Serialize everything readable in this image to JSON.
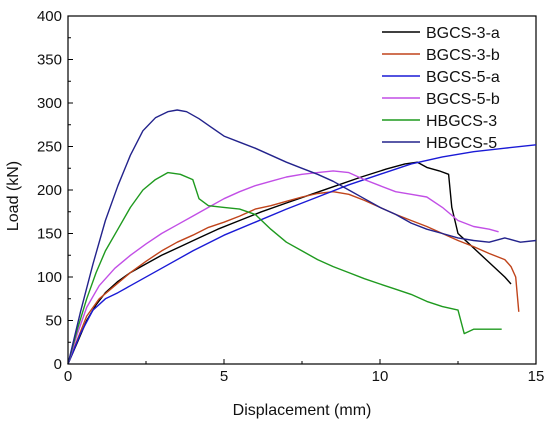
{
  "chart_data": {
    "type": "line",
    "title": "",
    "xlabel": "Displacement (mm)",
    "ylabel": "Load (kN)",
    "xlim": [
      0,
      15
    ],
    "ylim": [
      0,
      400
    ],
    "xticks": [
      0,
      5,
      10,
      15
    ],
    "yticks": [
      0,
      50,
      100,
      150,
      200,
      250,
      300,
      350,
      400
    ],
    "grid": false,
    "legend_position": "top-right",
    "series": [
      {
        "name": "BGCS-3-a",
        "color": "#000000",
        "x": [
          0,
          0.3,
          0.6,
          0.9,
          1.2,
          1.6,
          2.0,
          2.5,
          3.0,
          3.6,
          4.2,
          4.8,
          5.5,
          6.2,
          7.0,
          7.8,
          8.6,
          9.4,
          10.2,
          10.8,
          11.2,
          11.5,
          11.9,
          12.2,
          12.3,
          12.5,
          12.8,
          13.1,
          13.4,
          13.7,
          14.0,
          14.2
        ],
        "y": [
          0,
          25,
          50,
          68,
          82,
          95,
          105,
          115,
          125,
          135,
          145,
          155,
          165,
          175,
          185,
          195,
          205,
          215,
          224,
          230,
          232,
          226,
          222,
          218,
          180,
          150,
          140,
          130,
          120,
          110,
          100,
          92
        ]
      },
      {
        "name": "BGCS-3-b",
        "color": "#c0441b",
        "x": [
          0,
          0.3,
          0.6,
          1.0,
          1.5,
          2.0,
          2.5,
          3.0,
          3.5,
          4.0,
          4.5,
          5.0,
          5.5,
          6.0,
          6.5,
          7.0,
          7.5,
          8.0,
          8.5,
          9.0,
          9.5,
          10.0,
          10.5,
          11.0,
          11.5,
          12.0,
          12.5,
          13.0,
          13.5,
          14.0,
          14.2,
          14.35,
          14.45
        ],
        "y": [
          0,
          28,
          55,
          75,
          90,
          105,
          118,
          130,
          140,
          148,
          157,
          163,
          170,
          178,
          182,
          187,
          192,
          196,
          198,
          195,
          188,
          180,
          172,
          165,
          158,
          150,
          142,
          135,
          127,
          120,
          112,
          100,
          60
        ]
      },
      {
        "name": "BGCS-5-a",
        "color": "#1a1ad6",
        "x": [
          0,
          0.4,
          0.8,
          1.2,
          1.6,
          2.0,
          3.0,
          4.0,
          5.0,
          6.0,
          7.0,
          8.0,
          9.0,
          10.0,
          11.0,
          12.0,
          13.0,
          14.0,
          15.0
        ],
        "y": [
          0,
          35,
          62,
          75,
          82,
          90,
          110,
          130,
          148,
          163,
          178,
          192,
          206,
          218,
          230,
          238,
          244,
          248,
          252
        ]
      },
      {
        "name": "BGCS-5-b",
        "color": "#c24fe6",
        "x": [
          0,
          0.3,
          0.6,
          1.0,
          1.5,
          2.0,
          2.5,
          3.0,
          3.5,
          4.0,
          4.5,
          5.0,
          5.5,
          6.0,
          6.5,
          7.0,
          7.5,
          8.0,
          8.5,
          9.0,
          9.5,
          10.0,
          10.5,
          11.0,
          11.5,
          12.0,
          12.5,
          13.0,
          13.5,
          13.8
        ],
        "y": [
          0,
          35,
          65,
          90,
          110,
          125,
          138,
          150,
          160,
          170,
          180,
          190,
          198,
          205,
          210,
          215,
          218,
          220,
          222,
          220,
          212,
          205,
          198,
          195,
          192,
          180,
          165,
          158,
          155,
          152
        ]
      },
      {
        "name": "HBGCS-3",
        "color": "#1f9a1f",
        "x": [
          0,
          0.3,
          0.6,
          0.9,
          1.2,
          1.6,
          2.0,
          2.4,
          2.8,
          3.2,
          3.6,
          4.0,
          4.2,
          4.5,
          5.0,
          5.5,
          6.0,
          6.5,
          7.0,
          7.5,
          8.0,
          8.5,
          9.0,
          9.5,
          10.0,
          10.5,
          11.0,
          11.5,
          12.0,
          12.5,
          12.7,
          13.0,
          13.5,
          13.9
        ],
        "y": [
          0,
          40,
          75,
          105,
          130,
          155,
          180,
          200,
          212,
          220,
          218,
          212,
          190,
          182,
          180,
          178,
          172,
          155,
          140,
          130,
          120,
          112,
          105,
          98,
          92,
          86,
          80,
          72,
          66,
          62,
          35,
          40,
          40,
          40
        ]
      },
      {
        "name": "HBGCS-5",
        "color": "#23238c",
        "x": [
          0,
          0.4,
          0.8,
          1.2,
          1.6,
          2.0,
          2.4,
          2.8,
          3.2,
          3.5,
          3.8,
          4.2,
          4.6,
          5.0,
          5.5,
          6.0,
          6.5,
          7.0,
          7.5,
          8.0,
          8.5,
          9.0,
          9.5,
          10.0,
          10.5,
          11.0,
          11.5,
          12.0,
          12.5,
          13.0,
          13.5,
          14.0,
          14.5,
          15.0
        ],
        "y": [
          0,
          60,
          115,
          165,
          205,
          240,
          268,
          283,
          290,
          292,
          290,
          282,
          272,
          262,
          255,
          248,
          240,
          232,
          225,
          218,
          210,
          200,
          190,
          180,
          172,
          162,
          155,
          150,
          145,
          142,
          140,
          145,
          140,
          142
        ]
      }
    ]
  }
}
